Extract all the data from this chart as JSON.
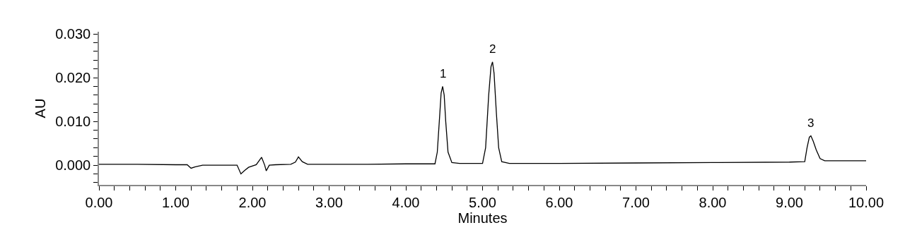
{
  "chart_data": {
    "type": "line",
    "xlabel": "Minutes",
    "ylabel": "AU",
    "xlim": [
      0,
      10
    ],
    "ylim": [
      -0.0045,
      0.0305
    ],
    "xticks": [
      {
        "value": 0,
        "label": "0.00"
      },
      {
        "value": 0.2,
        "label": null
      },
      {
        "value": 0.4,
        "label": null
      },
      {
        "value": 0.6,
        "label": null
      },
      {
        "value": 0.8,
        "label": null
      },
      {
        "value": 1,
        "label": "1.00"
      },
      {
        "value": 1.2,
        "label": null
      },
      {
        "value": 1.4,
        "label": null
      },
      {
        "value": 1.6,
        "label": null
      },
      {
        "value": 1.8,
        "label": null
      },
      {
        "value": 2,
        "label": "2.00"
      },
      {
        "value": 2.2,
        "label": null
      },
      {
        "value": 2.4,
        "label": null
      },
      {
        "value": 2.6,
        "label": null
      },
      {
        "value": 2.8,
        "label": null
      },
      {
        "value": 3,
        "label": "3.00"
      },
      {
        "value": 3.2,
        "label": null
      },
      {
        "value": 3.4,
        "label": null
      },
      {
        "value": 3.6,
        "label": null
      },
      {
        "value": 3.8,
        "label": null
      },
      {
        "value": 4,
        "label": "4.00"
      },
      {
        "value": 4.2,
        "label": null
      },
      {
        "value": 4.4,
        "label": null
      },
      {
        "value": 4.6,
        "label": null
      },
      {
        "value": 4.8,
        "label": null
      },
      {
        "value": 5,
        "label": "5.00"
      },
      {
        "value": 5.2,
        "label": null
      },
      {
        "value": 5.4,
        "label": null
      },
      {
        "value": 5.6,
        "label": null
      },
      {
        "value": 5.8,
        "label": null
      },
      {
        "value": 6,
        "label": "6.00"
      },
      {
        "value": 6.2,
        "label": null
      },
      {
        "value": 6.4,
        "label": null
      },
      {
        "value": 6.6,
        "label": null
      },
      {
        "value": 6.8,
        "label": null
      },
      {
        "value": 7,
        "label": "7.00"
      },
      {
        "value": 7.2,
        "label": null
      },
      {
        "value": 7.4,
        "label": null
      },
      {
        "value": 7.6,
        "label": null
      },
      {
        "value": 7.8,
        "label": null
      },
      {
        "value": 8,
        "label": "8.00"
      },
      {
        "value": 8.2,
        "label": null
      },
      {
        "value": 8.4,
        "label": null
      },
      {
        "value": 8.6,
        "label": null
      },
      {
        "value": 8.8,
        "label": null
      },
      {
        "value": 9,
        "label": "9.00"
      },
      {
        "value": 9.2,
        "label": null
      },
      {
        "value": 9.4,
        "label": null
      },
      {
        "value": 9.6,
        "label": null
      },
      {
        "value": 9.8,
        "label": null
      },
      {
        "value": 10,
        "label": "10.00"
      }
    ],
    "yticks": [
      {
        "value": -0.004,
        "label": null
      },
      {
        "value": -0.002,
        "label": null
      },
      {
        "value": 0,
        "label": "0.000"
      },
      {
        "value": 0.002,
        "label": null
      },
      {
        "value": 0.004,
        "label": null
      },
      {
        "value": 0.006,
        "label": null
      },
      {
        "value": 0.008,
        "label": null
      },
      {
        "value": 0.01,
        "label": "0.010"
      },
      {
        "value": 0.012,
        "label": null
      },
      {
        "value": 0.014,
        "label": null
      },
      {
        "value": 0.016,
        "label": null
      },
      {
        "value": 0.018,
        "label": null
      },
      {
        "value": 0.02,
        "label": "0.020"
      },
      {
        "value": 0.022,
        "label": null
      },
      {
        "value": 0.024,
        "label": null
      },
      {
        "value": 0.026,
        "label": null
      },
      {
        "value": 0.028,
        "label": null
      },
      {
        "value": 0.03,
        "label": "0.030"
      }
    ],
    "marker": "none",
    "line_style": "solid",
    "series": [
      {
        "color": "#000000",
        "x": [
          0,
          0.5,
          1.0,
          1.15,
          1.2,
          1.25,
          1.35,
          1.5,
          1.8,
          1.85,
          1.9,
          1.95,
          2.05,
          2.12,
          2.16,
          2.18,
          2.22,
          2.3,
          2.5,
          2.56,
          2.6,
          2.65,
          2.72,
          3.0,
          3.5,
          4.0,
          4.38,
          4.41,
          4.44,
          4.46,
          4.48,
          4.5,
          4.52,
          4.55,
          4.6,
          4.7,
          5.0,
          5.04,
          5.08,
          5.11,
          5.13,
          5.15,
          5.18,
          5.21,
          5.25,
          5.35,
          6.0,
          7.0,
          8.0,
          9.0,
          9.2,
          9.23,
          9.26,
          9.28,
          9.31,
          9.35,
          9.4,
          9.46,
          9.6,
          10.0
        ],
        "values": [
          0.0002,
          0.0002,
          0.0001,
          0.0001,
          -0.0007,
          -0.0004,
          0.0,
          0.0,
          0.0,
          -0.002,
          -0.0012,
          -0.0005,
          0.0001,
          0.0018,
          0.0,
          -0.0013,
          0.0,
          0.0001,
          0.0002,
          0.0007,
          0.0019,
          0.0008,
          0.0002,
          0.0002,
          0.0002,
          0.0003,
          0.0003,
          0.003,
          0.011,
          0.0165,
          0.018,
          0.016,
          0.01,
          0.003,
          0.0006,
          0.0004,
          0.0004,
          0.004,
          0.016,
          0.0225,
          0.0236,
          0.021,
          0.012,
          0.004,
          0.0008,
          0.0004,
          0.0004,
          0.0005,
          0.0006,
          0.0007,
          0.0008,
          0.004,
          0.0064,
          0.0067,
          0.0055,
          0.0035,
          0.0015,
          0.001,
          0.001,
          0.001
        ]
      }
    ],
    "annotations": [
      {
        "text": "1",
        "x": 4.48,
        "y": 0.018
      },
      {
        "text": "2",
        "x": 5.13,
        "y": 0.0236
      },
      {
        "text": "3",
        "x": 9.28,
        "y": 0.0067
      }
    ]
  }
}
